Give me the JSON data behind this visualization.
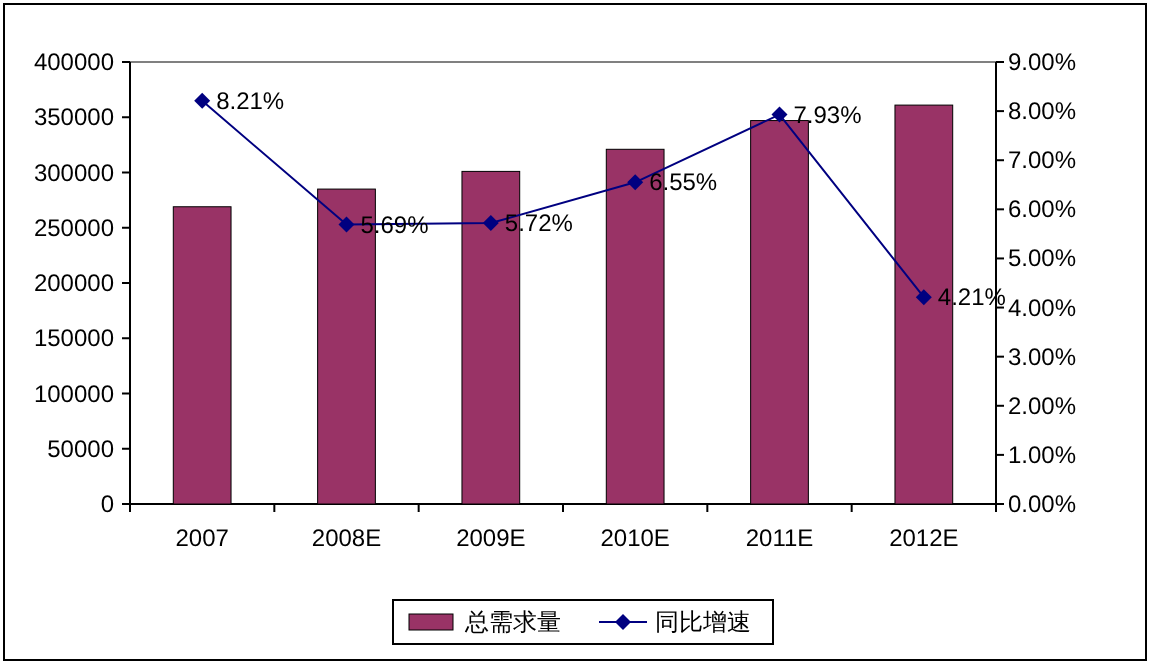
{
  "chart_data": {
    "type": "bar",
    "categories": [
      "2007",
      "2008E",
      "2009E",
      "2010E",
      "2011E",
      "2012E"
    ],
    "series": [
      {
        "name": "总需求量",
        "color": "#993366",
        "values": [
          269000,
          285000,
          301000,
          321000,
          347000,
          361000
        ]
      },
      {
        "name": "同比增速",
        "type": "line",
        "axis": "y2",
        "color": "#000080",
        "marker": "diamond",
        "line_style": "solid",
        "values": [
          8.21,
          5.69,
          5.72,
          6.55,
          7.93,
          4.21
        ],
        "value_labels": [
          "8.21%",
          "5.69%",
          "5.72%",
          "6.55%",
          "7.93%",
          "4.21%"
        ]
      }
    ],
    "ylim": [
      0,
      400000
    ],
    "yticks": [
      0,
      50000,
      100000,
      150000,
      200000,
      250000,
      300000,
      350000,
      400000
    ],
    "y2lim": [
      0,
      9
    ],
    "y2ticks": [
      {
        "value": 0,
        "label": "0.00%"
      },
      {
        "value": 1,
        "label": "1.00%"
      },
      {
        "value": 2,
        "label": "2.00%"
      },
      {
        "value": 3,
        "label": "3.00%"
      },
      {
        "value": 4,
        "label": "4.00%"
      },
      {
        "value": 5,
        "label": "5.00%"
      },
      {
        "value": 6,
        "label": "6.00%"
      },
      {
        "value": 7,
        "label": "7.00%"
      },
      {
        "value": 8,
        "label": "8.00%"
      },
      {
        "value": 9,
        "label": "9.00%"
      }
    ],
    "grid": false,
    "legend": "bottom"
  }
}
